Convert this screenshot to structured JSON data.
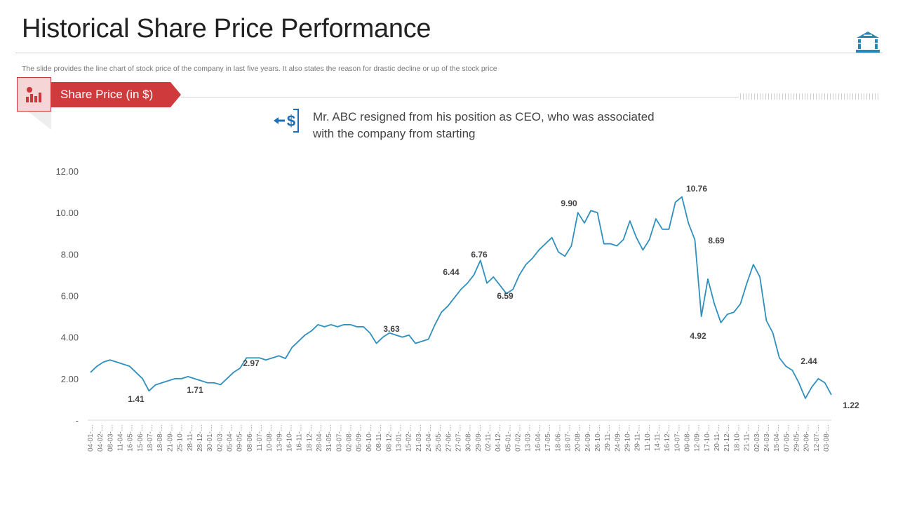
{
  "header": {
    "title": "Historical Share Price Performance",
    "subtitle": "The slide provides the line chart of stock price of the company in last five years. It also states the reason for drastic decline or up of the stock price",
    "icon": "bank-icon"
  },
  "section": {
    "label": "Share Price (in $)",
    "icon": "bar-chart-dollar-icon"
  },
  "callout": {
    "icon": "dollar-arrow-out-icon",
    "text_line1": "Mr. ABC resigned from his position as CEO, who was associated",
    "text_line2": "with the company from starting"
  },
  "colors": {
    "line": "#2f8fbd",
    "accent": "#cf3a3c",
    "icon_blue": "#2a86b5",
    "callout_blue": "#1f6fb5"
  },
  "chart_data": {
    "type": "line",
    "title": "",
    "xlabel": "",
    "ylabel": "",
    "ylim": [
      0,
      12
    ],
    "grid": false,
    "yticks": [
      "-",
      "2.00",
      "4.00",
      "6.00",
      "8.00",
      "10.00",
      "12.00"
    ],
    "xticks": [
      "04-01-…",
      "04-02-…",
      "08-03-…",
      "11-04-…",
      "16-05-…",
      "15-06-…",
      "18-07-…",
      "18-08-…",
      "21-09-…",
      "25-10-…",
      "28-11-…",
      "28-12-…",
      "30-01-…",
      "02-03-…",
      "05-04-…",
      "09-05-…",
      "08-06-…",
      "11-07-…",
      "10-08-…",
      "13-09-…",
      "16-10-…",
      "16-11-…",
      "18-12-…",
      "28-04-…",
      "31-05-…",
      "03-07-…",
      "02-08-…",
      "05-09-…",
      "06-10-…",
      "08-11-…",
      "08-12-…",
      "13-01-…",
      "15-02-…",
      "21-03-…",
      "24-04-…",
      "25-05-…",
      "27-06-…",
      "27-07-…",
      "30-08-…",
      "29-09-…",
      "02-11-…",
      "04-12-…",
      "05-01-…",
      "07-02-…",
      "13-03-…",
      "16-04-…",
      "17-05-…",
      "18-06-…",
      "18-07-…",
      "20-08-…",
      "24-09-…",
      "26-10-…",
      "29-11-…",
      "24-09-…",
      "29-10-…",
      "29-11-…",
      "11-10-…",
      "14-11-…",
      "16-12-…",
      "10-07-…",
      "09-08-…",
      "12-09-…",
      "17-10-…",
      "20-11-…",
      "21-12-…",
      "18-10-…",
      "21-11-…",
      "02-03-…",
      "24-03-…",
      "15-04-…",
      "07-05-…",
      "29-05-…",
      "20-06-…",
      "12-07-…",
      "03-08-…"
    ],
    "values": [
      2.3,
      2.6,
      2.8,
      2.9,
      2.8,
      2.7,
      2.6,
      2.3,
      2.0,
      1.41,
      1.7,
      1.8,
      1.9,
      2.0,
      2.0,
      2.1,
      2.0,
      1.9,
      1.8,
      1.8,
      1.71,
      2.0,
      2.3,
      2.5,
      3.0,
      3.0,
      3.0,
      2.9,
      3.0,
      3.1,
      2.97,
      3.5,
      3.8,
      4.1,
      4.3,
      4.6,
      4.5,
      4.6,
      4.5,
      4.6,
      4.6,
      4.5,
      4.5,
      4.2,
      3.7,
      4.0,
      4.2,
      4.1,
      4.0,
      4.1,
      3.7,
      3.8,
      3.9,
      4.6,
      5.2,
      5.5,
      5.9,
      6.3,
      6.6,
      7.0,
      7.7,
      6.6,
      6.9,
      6.5,
      6.1,
      6.3,
      7.0,
      7.5,
      7.8,
      8.2,
      8.5,
      8.8,
      8.1,
      7.9,
      8.4,
      10.0,
      9.5,
      10.1,
      10.0,
      8.5,
      8.5,
      8.4,
      8.7,
      9.6,
      8.8,
      8.2,
      8.7,
      9.7,
      9.2,
      9.2,
      10.5,
      10.76,
      9.5,
      8.69,
      5.0,
      6.8,
      5.6,
      4.7,
      5.1,
      5.2,
      5.6,
      6.6,
      7.5,
      6.9,
      4.8,
      4.2,
      3.0,
      2.6,
      2.4,
      1.8,
      1.05,
      1.6,
      2.0,
      1.8,
      1.22
    ],
    "annotations": [
      "1.41",
      "1.71",
      "2.97",
      "3.63",
      "6.44",
      "6.76",
      "6.59",
      "9.90",
      "10.76",
      "8.69",
      "4.92",
      "2.44",
      "1.22"
    ]
  }
}
